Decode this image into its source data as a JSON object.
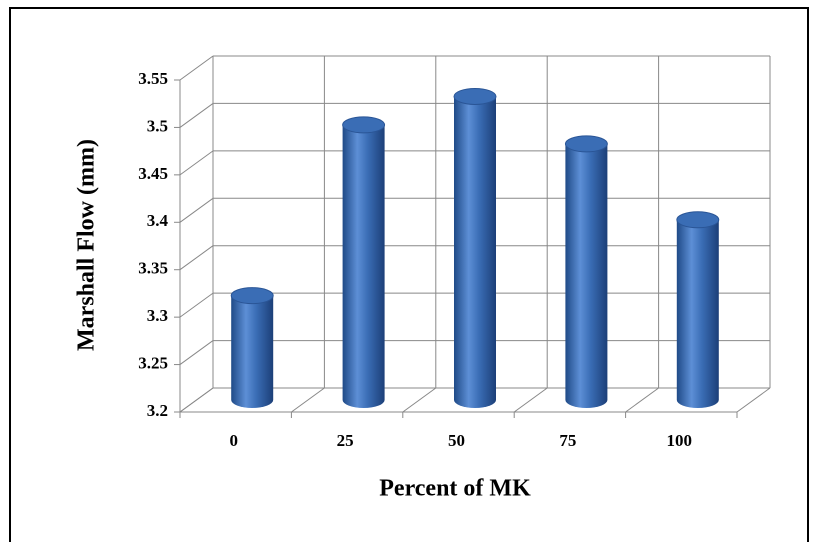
{
  "chart_data": {
    "type": "bar",
    "x_label": "Percent of MK",
    "y_label": "Marshall Flow (mm)",
    "categories": [
      "0",
      "25",
      "50",
      "75",
      "100"
    ],
    "values": [
      3.31,
      3.49,
      3.52,
      3.47,
      3.39
    ],
    "color": "#3a6db5",
    "ylim": [
      3.2,
      3.55
    ],
    "yticks": [
      3.2,
      3.25,
      3.3,
      3.35,
      3.4,
      3.45,
      3.5,
      3.55
    ],
    "grid": true
  }
}
